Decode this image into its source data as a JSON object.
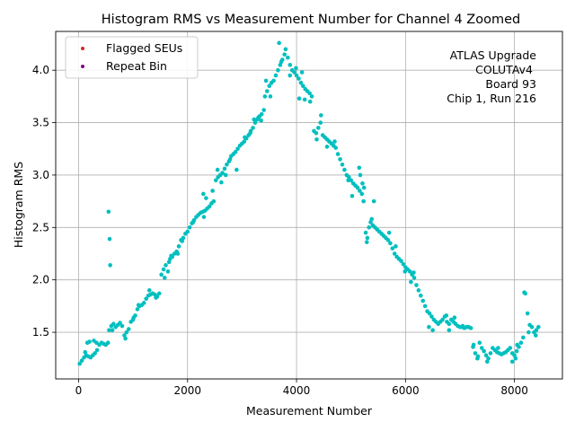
{
  "chart_data": {
    "type": "scatter",
    "title": "Histogram RMS vs Measurement Number for Channel 4 Zoomed",
    "xlabel": "Measurement Number",
    "ylabel": "Histogram RMS",
    "xlim": [
      -420,
      8880
    ],
    "ylim": [
      1.055,
      4.37
    ],
    "grid": true,
    "x_ticks": [
      0,
      2000,
      4000,
      6000,
      8000
    ],
    "y_ticks": [
      1.5,
      2.0,
      2.5,
      3.0,
      3.5,
      4.0
    ],
    "x_tick_labels": [
      "0",
      "2000",
      "4000",
      "6000",
      "8000"
    ],
    "y_tick_labels": [
      "1.5",
      "2.0",
      "2.5",
      "3.0",
      "3.5",
      "4.0"
    ],
    "annotation_lines": [
      "ATLAS Upgrade",
      "COLUTAv4",
      "Board 93",
      "Chip 1, Run 216"
    ],
    "annotation_placement": "top-right",
    "legend_placement": "top-left",
    "legend": [
      {
        "label": "Flagged SEUs",
        "color": "#d62728"
      },
      {
        "label": "Repeat Bin",
        "color": "#800080"
      }
    ],
    "series": [
      {
        "name": "RMS",
        "color": "#00bfbf",
        "points": [
          [
            20,
            1.2
          ],
          [
            60,
            1.23
          ],
          [
            100,
            1.26
          ],
          [
            140,
            1.28
          ],
          [
            180,
            1.27
          ],
          [
            220,
            1.26
          ],
          [
            260,
            1.28
          ],
          [
            300,
            1.3
          ],
          [
            340,
            1.33
          ],
          [
            380,
            1.38
          ],
          [
            420,
            1.4
          ],
          [
            460,
            1.39
          ],
          [
            500,
            1.38
          ],
          [
            540,
            1.4
          ],
          [
            120,
            1.31
          ],
          [
            160,
            1.4
          ],
          [
            200,
            1.41
          ],
          [
            280,
            1.42
          ],
          [
            330,
            1.4
          ],
          [
            560,
            1.52
          ],
          [
            600,
            1.56
          ],
          [
            640,
            1.58
          ],
          [
            680,
            1.55
          ],
          [
            720,
            1.57
          ],
          [
            760,
            1.59
          ],
          [
            800,
            1.56
          ],
          [
            840,
            1.47
          ],
          [
            880,
            1.5
          ],
          [
            920,
            1.53
          ],
          [
            960,
            1.6
          ],
          [
            1000,
            1.62
          ],
          [
            1040,
            1.66
          ],
          [
            1080,
            1.72
          ],
          [
            1120,
            1.75
          ],
          [
            1160,
            1.76
          ],
          [
            1200,
            1.78
          ],
          [
            1240,
            1.82
          ],
          [
            1280,
            1.85
          ],
          [
            1320,
            1.86
          ],
          [
            1360,
            1.87
          ],
          [
            1400,
            1.86
          ],
          [
            1440,
            1.84
          ],
          [
            1480,
            1.87
          ],
          [
            620,
            1.52
          ],
          [
            860,
            1.44
          ],
          [
            1010,
            1.64
          ],
          [
            1100,
            1.76
          ],
          [
            1300,
            1.9
          ],
          [
            1420,
            1.83
          ],
          [
            550,
            2.65
          ],
          [
            570,
            2.39
          ],
          [
            580,
            2.14
          ],
          [
            1520,
            2.05
          ],
          [
            1560,
            2.1
          ],
          [
            1600,
            2.14
          ],
          [
            1640,
            2.08
          ],
          [
            1680,
            2.2
          ],
          [
            1720,
            2.22
          ],
          [
            1760,
            2.25
          ],
          [
            1800,
            2.27
          ],
          [
            1840,
            2.32
          ],
          [
            1880,
            2.38
          ],
          [
            1920,
            2.4
          ],
          [
            1960,
            2.44
          ],
          [
            2000,
            2.46
          ],
          [
            2040,
            2.5
          ],
          [
            2080,
            2.54
          ],
          [
            2120,
            2.57
          ],
          [
            2160,
            2.6
          ],
          [
            2200,
            2.62
          ],
          [
            2240,
            2.64
          ],
          [
            2280,
            2.65
          ],
          [
            2320,
            2.66
          ],
          [
            2360,
            2.68
          ],
          [
            2400,
            2.7
          ],
          [
            2440,
            2.73
          ],
          [
            2480,
            2.75
          ],
          [
            1580,
            2.02
          ],
          [
            1660,
            2.17
          ],
          [
            1700,
            2.23
          ],
          [
            1820,
            2.25
          ],
          [
            1900,
            2.37
          ],
          [
            2100,
            2.55
          ],
          [
            2300,
            2.6
          ],
          [
            2340,
            2.78
          ],
          [
            2460,
            2.85
          ],
          [
            2290,
            2.82
          ],
          [
            2520,
            2.95
          ],
          [
            2560,
            2.98
          ],
          [
            2600,
            3.0
          ],
          [
            2640,
            3.02
          ],
          [
            2680,
            3.06
          ],
          [
            2720,
            3.1
          ],
          [
            2760,
            3.13
          ],
          [
            2800,
            3.18
          ],
          [
            2840,
            3.2
          ],
          [
            2880,
            3.22
          ],
          [
            2920,
            3.25
          ],
          [
            2960,
            3.28
          ],
          [
            3000,
            3.3
          ],
          [
            3040,
            3.32
          ],
          [
            3080,
            3.35
          ],
          [
            3120,
            3.38
          ],
          [
            3160,
            3.42
          ],
          [
            3200,
            3.45
          ],
          [
            3240,
            3.5
          ],
          [
            3280,
            3.53
          ],
          [
            3320,
            3.56
          ],
          [
            3360,
            3.58
          ],
          [
            3400,
            3.62
          ],
          [
            2550,
            3.05
          ],
          [
            2620,
            2.93
          ],
          [
            2700,
            3.0
          ],
          [
            2780,
            3.15
          ],
          [
            2900,
            3.05
          ],
          [
            3050,
            3.36
          ],
          [
            3150,
            3.4
          ],
          [
            3220,
            3.53
          ],
          [
            3300,
            3.55
          ],
          [
            3350,
            3.52
          ],
          [
            3420,
            3.75
          ],
          [
            3460,
            3.8
          ],
          [
            3500,
            3.85
          ],
          [
            3540,
            3.88
          ],
          [
            3580,
            3.9
          ],
          [
            3620,
            3.95
          ],
          [
            3660,
            4.0
          ],
          [
            3700,
            4.05
          ],
          [
            3740,
            4.1
          ],
          [
            3780,
            4.15
          ],
          [
            3800,
            4.2
          ],
          [
            3840,
            4.12
          ],
          [
            3880,
            4.05
          ],
          [
            3920,
            4.0
          ],
          [
            3960,
            3.98
          ],
          [
            4000,
            3.95
          ],
          [
            4040,
            3.92
          ],
          [
            4080,
            3.88
          ],
          [
            4120,
            3.85
          ],
          [
            4160,
            3.82
          ],
          [
            4200,
            3.8
          ],
          [
            4240,
            3.78
          ],
          [
            4280,
            3.75
          ],
          [
            3680,
            4.26
          ],
          [
            3440,
            3.9
          ],
          [
            3520,
            3.75
          ],
          [
            3720,
            4.08
          ],
          [
            3880,
            3.95
          ],
          [
            3990,
            4.02
          ],
          [
            4050,
            3.73
          ],
          [
            4100,
            3.98
          ],
          [
            4150,
            3.72
          ],
          [
            4250,
            3.7
          ],
          [
            4320,
            3.42
          ],
          [
            4360,
            3.4
          ],
          [
            4400,
            3.45
          ],
          [
            4440,
            3.5
          ],
          [
            4480,
            3.38
          ],
          [
            4520,
            3.36
          ],
          [
            4560,
            3.34
          ],
          [
            4600,
            3.32
          ],
          [
            4640,
            3.3
          ],
          [
            4680,
            3.28
          ],
          [
            4720,
            3.26
          ],
          [
            4760,
            3.2
          ],
          [
            4800,
            3.15
          ],
          [
            4840,
            3.1
          ],
          [
            4880,
            3.05
          ],
          [
            4920,
            3.0
          ],
          [
            4960,
            2.98
          ],
          [
            5000,
            2.95
          ],
          [
            5040,
            2.92
          ],
          [
            5080,
            2.9
          ],
          [
            5120,
            2.88
          ],
          [
            5160,
            2.85
          ],
          [
            5200,
            2.82
          ],
          [
            5240,
            2.88
          ],
          [
            4450,
            3.57
          ],
          [
            4560,
            3.27
          ],
          [
            4700,
            3.32
          ],
          [
            4950,
            2.95
          ],
          [
            5020,
            2.8
          ],
          [
            5150,
            3.07
          ],
          [
            5170,
            3.0
          ],
          [
            5210,
            2.92
          ],
          [
            5230,
            2.75
          ],
          [
            4370,
            3.34
          ],
          [
            5270,
            2.45
          ],
          [
            5300,
            2.4
          ],
          [
            5330,
            2.5
          ],
          [
            5360,
            2.55
          ],
          [
            5400,
            2.52
          ],
          [
            5440,
            2.5
          ],
          [
            5480,
            2.48
          ],
          [
            5520,
            2.46
          ],
          [
            5560,
            2.44
          ],
          [
            5600,
            2.42
          ],
          [
            5640,
            2.4
          ],
          [
            5680,
            2.38
          ],
          [
            5720,
            2.35
          ],
          [
            5760,
            2.3
          ],
          [
            5800,
            2.25
          ],
          [
            5840,
            2.22
          ],
          [
            5880,
            2.2
          ],
          [
            5920,
            2.18
          ],
          [
            5960,
            2.15
          ],
          [
            6000,
            2.12
          ],
          [
            6040,
            2.1
          ],
          [
            6080,
            2.08
          ],
          [
            6120,
            2.05
          ],
          [
            6160,
            2.02
          ],
          [
            5290,
            2.36
          ],
          [
            5420,
            2.75
          ],
          [
            5380,
            2.58
          ],
          [
            5700,
            2.45
          ],
          [
            5820,
            2.32
          ],
          [
            5990,
            2.08
          ],
          [
            6100,
            1.98
          ],
          [
            6150,
            2.07
          ],
          [
            6200,
            1.95
          ],
          [
            6240,
            1.9
          ],
          [
            6280,
            1.85
          ],
          [
            6320,
            1.8
          ],
          [
            6360,
            1.75
          ],
          [
            6400,
            1.7
          ],
          [
            6440,
            1.68
          ],
          [
            6480,
            1.65
          ],
          [
            6520,
            1.62
          ],
          [
            6560,
            1.6
          ],
          [
            6600,
            1.58
          ],
          [
            6640,
            1.6
          ],
          [
            6680,
            1.62
          ],
          [
            6720,
            1.65
          ],
          [
            6760,
            1.6
          ],
          [
            6800,
            1.58
          ],
          [
            6840,
            1.62
          ],
          [
            6880,
            1.6
          ],
          [
            6920,
            1.58
          ],
          [
            6960,
            1.56
          ],
          [
            7000,
            1.55
          ],
          [
            7040,
            1.55
          ],
          [
            7080,
            1.54
          ],
          [
            7120,
            1.55
          ],
          [
            7160,
            1.55
          ],
          [
            7200,
            1.54
          ],
          [
            6430,
            1.55
          ],
          [
            6500,
            1.52
          ],
          [
            6750,
            1.66
          ],
          [
            6800,
            1.52
          ],
          [
            6900,
            1.64
          ],
          [
            7050,
            1.56
          ],
          [
            7240,
            1.36
          ],
          [
            7280,
            1.3
          ],
          [
            7320,
            1.25
          ],
          [
            7360,
            1.4
          ],
          [
            7400,
            1.35
          ],
          [
            7440,
            1.32
          ],
          [
            7480,
            1.28
          ],
          [
            7520,
            1.25
          ],
          [
            7560,
            1.3
          ],
          [
            7600,
            1.35
          ],
          [
            7640,
            1.33
          ],
          [
            7680,
            1.31
          ],
          [
            7720,
            1.3
          ],
          [
            7760,
            1.29
          ],
          [
            7800,
            1.3
          ],
          [
            7840,
            1.31
          ],
          [
            7880,
            1.33
          ],
          [
            7920,
            1.35
          ],
          [
            7960,
            1.3
          ],
          [
            8000,
            1.28
          ],
          [
            8040,
            1.32
          ],
          [
            8080,
            1.36
          ],
          [
            8120,
            1.4
          ],
          [
            8160,
            1.45
          ],
          [
            7250,
            1.38
          ],
          [
            7330,
            1.27
          ],
          [
            7500,
            1.22
          ],
          [
            7700,
            1.35
          ],
          [
            7960,
            1.22
          ],
          [
            8020,
            1.25
          ],
          [
            8050,
            1.38
          ],
          [
            8180,
            1.88
          ],
          [
            8200,
            1.87
          ],
          [
            8240,
            1.68
          ],
          [
            8260,
            1.5
          ],
          [
            8280,
            1.57
          ],
          [
            8320,
            1.55
          ],
          [
            8360,
            1.5
          ],
          [
            8400,
            1.52
          ],
          [
            8440,
            1.55
          ],
          [
            8390,
            1.47
          ]
        ]
      }
    ]
  }
}
